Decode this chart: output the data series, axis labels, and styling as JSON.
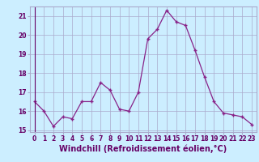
{
  "x": [
    0,
    1,
    2,
    3,
    4,
    5,
    6,
    7,
    8,
    9,
    10,
    11,
    12,
    13,
    14,
    15,
    16,
    17,
    18,
    19,
    20,
    21,
    22,
    23
  ],
  "y": [
    16.5,
    16.0,
    15.2,
    15.7,
    15.6,
    16.5,
    16.5,
    17.5,
    17.1,
    16.1,
    16.0,
    17.0,
    19.8,
    20.3,
    21.3,
    20.7,
    20.5,
    19.2,
    17.8,
    16.5,
    15.9,
    15.8,
    15.7,
    15.3
  ],
  "line_color": "#882288",
  "background_color": "#cceeff",
  "grid_color": "#aaaacc",
  "xlabel": "Windchill (Refroidissement éolien,°C)",
  "ylim": [
    14.9,
    21.5
  ],
  "yticks": [
    15,
    16,
    17,
    18,
    19,
    20,
    21
  ],
  "xticks": [
    0,
    1,
    2,
    3,
    4,
    5,
    6,
    7,
    8,
    9,
    10,
    11,
    12,
    13,
    14,
    15,
    16,
    17,
    18,
    19,
    20,
    21,
    22,
    23
  ],
  "tick_label_fontsize": 5.5,
  "xlabel_fontsize": 7.0,
  "label_color": "#660066"
}
